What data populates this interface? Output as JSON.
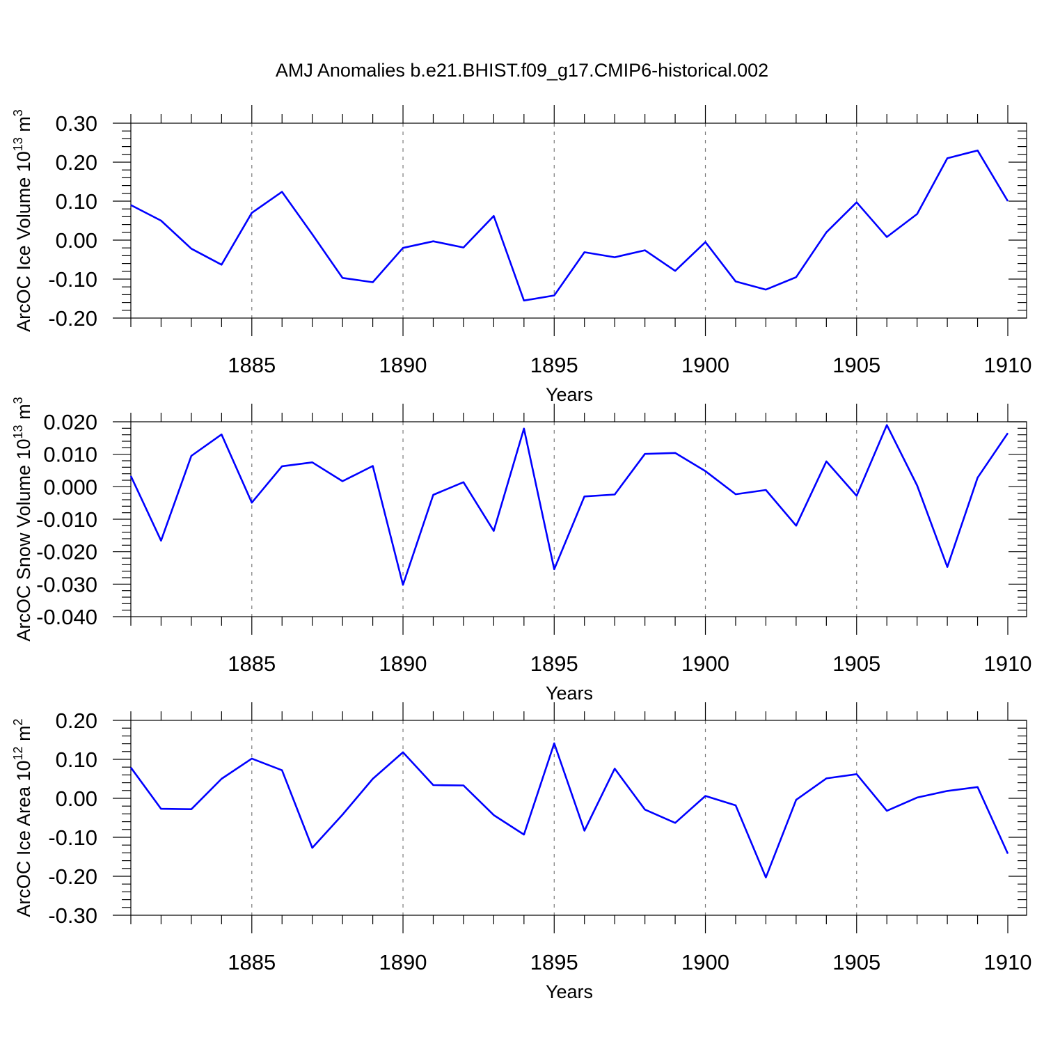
{
  "title": "AMJ Anomalies b.e21.BHIST.f09_g17.CMIP6-historical.002",
  "colors": {
    "series": "#0000ff",
    "grid": "#7a7a7a",
    "axis": "#000000"
  },
  "chart_data": [
    {
      "type": "line",
      "xlabel": "Years",
      "ylabel": {
        "text": "ArcOC Ice Volume 10",
        "exp": "13",
        "unit": " m",
        "unit_exp": "3"
      },
      "xlim": [
        1881,
        1910
      ],
      "ylim": [
        -0.2,
        0.3
      ],
      "x_ticks": [
        1885,
        1890,
        1895,
        1900,
        1905,
        1910
      ],
      "y_ticks": [
        -0.2,
        -0.1,
        0.0,
        0.1,
        0.2,
        0.3
      ],
      "y_tick_labels": [
        "-0.20",
        "-0.10",
        "0.00",
        "0.10",
        "0.20",
        "0.30"
      ],
      "y_minor_step": 0.02,
      "grid": "x-dashed",
      "x": [
        1881,
        1882,
        1883,
        1884,
        1885,
        1886,
        1887,
        1888,
        1889,
        1890,
        1891,
        1892,
        1893,
        1894,
        1895,
        1896,
        1897,
        1898,
        1899,
        1900,
        1901,
        1902,
        1903,
        1904,
        1905,
        1906,
        1907,
        1908,
        1909,
        1910
      ],
      "values": [
        0.09,
        0.05,
        -0.022,
        -0.063,
        0.07,
        0.124,
        0.015,
        -0.097,
        -0.108,
        -0.02,
        -0.003,
        -0.019,
        0.062,
        -0.155,
        -0.142,
        -0.031,
        -0.044,
        -0.026,
        -0.079,
        -0.005,
        -0.106,
        -0.127,
        -0.095,
        0.02,
        0.097,
        0.008,
        0.067,
        0.21,
        0.23,
        0.1
      ]
    },
    {
      "type": "line",
      "xlabel": "Years",
      "ylabel": {
        "text": "ArcOC Snow Volume 10",
        "exp": "13",
        "unit": " m",
        "unit_exp": "3"
      },
      "xlim": [
        1881,
        1910
      ],
      "ylim": [
        -0.04,
        0.02
      ],
      "x_ticks": [
        1885,
        1890,
        1895,
        1900,
        1905,
        1910
      ],
      "y_ticks": [
        -0.04,
        -0.03,
        -0.02,
        -0.01,
        0.0,
        0.01,
        0.02
      ],
      "y_tick_labels": [
        "-0.040",
        "-0.030",
        "-0.020",
        "-0.010",
        "0.000",
        "0.010",
        "0.020"
      ],
      "y_minor_step": 0.002,
      "grid": "x-dashed",
      "x": [
        1881,
        1882,
        1883,
        1884,
        1885,
        1886,
        1887,
        1888,
        1889,
        1890,
        1891,
        1892,
        1893,
        1894,
        1895,
        1896,
        1897,
        1898,
        1899,
        1900,
        1901,
        1902,
        1903,
        1904,
        1905,
        1906,
        1907,
        1908,
        1909,
        1910
      ],
      "values": [
        0.0033,
        -0.0166,
        0.0095,
        0.0161,
        -0.0049,
        0.0063,
        0.0075,
        0.0017,
        0.0064,
        -0.0302,
        -0.0025,
        0.0014,
        -0.0136,
        0.0179,
        -0.0254,
        -0.003,
        -0.0024,
        0.0101,
        0.0104,
        0.0048,
        -0.0023,
        -0.001,
        -0.012,
        0.0078,
        -0.0028,
        0.019,
        0.0004,
        -0.0247,
        0.0028,
        0.0165
      ]
    },
    {
      "type": "line",
      "xlabel": "Years",
      "ylabel": {
        "text": "ArcOC Ice Area 10",
        "exp": "12",
        "unit": " m",
        "unit_exp": "2"
      },
      "xlim": [
        1881,
        1910
      ],
      "ylim": [
        -0.3,
        0.2
      ],
      "x_ticks": [
        1885,
        1890,
        1895,
        1900,
        1905,
        1910
      ],
      "y_ticks": [
        -0.3,
        -0.2,
        -0.1,
        0.0,
        0.1,
        0.2
      ],
      "y_tick_labels": [
        "-0.30",
        "-0.20",
        "-0.10",
        "0.00",
        "0.10",
        "0.20"
      ],
      "y_minor_step": 0.02,
      "grid": "x-dashed",
      "x": [
        1881,
        1882,
        1883,
        1884,
        1885,
        1886,
        1887,
        1888,
        1889,
        1890,
        1891,
        1892,
        1893,
        1894,
        1895,
        1896,
        1897,
        1898,
        1899,
        1900,
        1901,
        1902,
        1903,
        1904,
        1905,
        1906,
        1907,
        1908,
        1909,
        1910
      ],
      "values": [
        0.079,
        -0.027,
        -0.028,
        0.05,
        0.102,
        0.072,
        -0.127,
        -0.042,
        0.05,
        0.118,
        0.034,
        0.033,
        -0.043,
        -0.093,
        0.141,
        -0.083,
        0.076,
        -0.029,
        -0.063,
        0.006,
        -0.018,
        -0.203,
        -0.004,
        0.051,
        0.062,
        -0.032,
        0.002,
        0.019,
        0.029,
        -0.142
      ]
    }
  ]
}
